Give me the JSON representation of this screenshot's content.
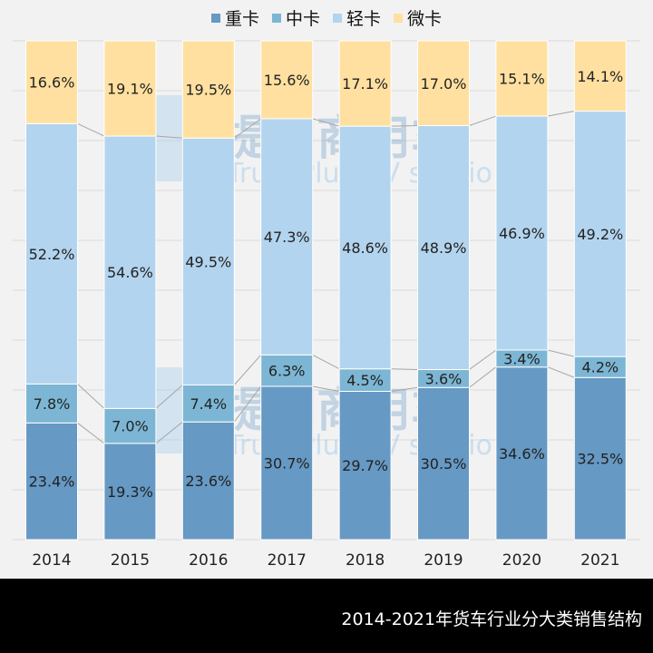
{
  "chart_data": {
    "type": "bar",
    "stacked": true,
    "percent": true,
    "title": "2014-2021年货车行业分大类销售结构",
    "categories": [
      "2014",
      "2015",
      "2016",
      "2017",
      "2018",
      "2019",
      "2020",
      "2021"
    ],
    "series": [
      {
        "name": "重卡",
        "color": "#6699c4",
        "values": [
          23.4,
          19.3,
          23.6,
          30.7,
          29.7,
          30.5,
          34.6,
          32.5
        ]
      },
      {
        "name": "中卡",
        "color": "#7cb6d4",
        "values": [
          7.8,
          7.0,
          7.4,
          6.3,
          4.5,
          3.6,
          3.4,
          4.2
        ]
      },
      {
        "name": "轻卡",
        "color": "#b3d4ee",
        "values": [
          52.2,
          54.6,
          49.5,
          47.3,
          48.6,
          48.9,
          46.9,
          49.2
        ]
      },
      {
        "name": "微卡",
        "color": "#ffe0a0",
        "values": [
          16.6,
          19.1,
          19.5,
          15.6,
          17.1,
          17.0,
          15.1,
          14.1
        ]
      }
    ],
    "ylim": [
      0,
      100
    ],
    "grid": true,
    "legend": "top",
    "data_label_format": "{v}%"
  },
  "watermark": {
    "cn": "提加商用车",
    "en": "TruckPlus CV studio"
  }
}
